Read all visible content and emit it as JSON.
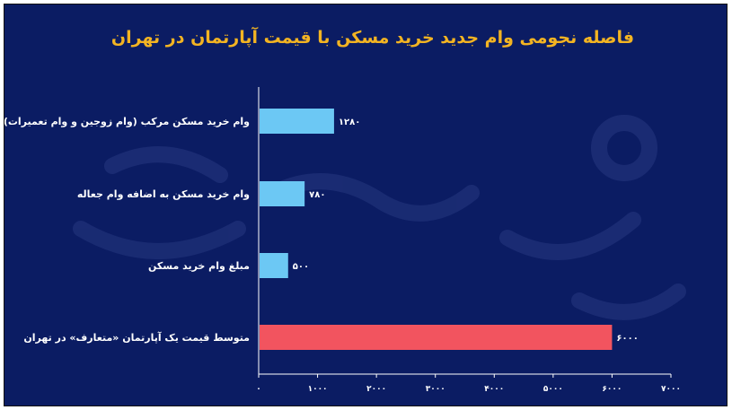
{
  "chart_data": {
    "type": "bar",
    "orientation": "horizontal",
    "title": "فاصله نجومی وام جدید خرید مسکن با قیمت آپارتمان در تهران",
    "categories": [
      "وام خرید مسکن مرکب (وام زوجین و وام تعمیرات)",
      "وام خرید مسکن به اضافه وام جعاله",
      "مبلغ وام خرید مسکن",
      "متوسط قیمت یک آپارتمان «متعارف» در تهران"
    ],
    "values": [
      1280,
      780,
      500,
      6000
    ],
    "value_labels": [
      "۱۲۸۰",
      "۷۸۰",
      "۵۰۰",
      "۶۰۰۰"
    ],
    "bar_colors": [
      "#6cc8f4",
      "#6cc8f4",
      "#6cc8f4",
      "#f2545f"
    ],
    "xlim": [
      0,
      7000
    ],
    "x_ticks": [
      0,
      1000,
      2000,
      3000,
      4000,
      5000,
      6000,
      7000
    ],
    "x_tick_labels": [
      "۰",
      "۱۰۰۰",
      "۲۰۰۰",
      "۳۰۰۰",
      "۴۰۰۰",
      "۵۰۰۰",
      "۶۰۰۰",
      "۷۰۰۰"
    ],
    "xlabel": "",
    "ylabel": "",
    "grid": false,
    "legend": "none"
  },
  "colors": {
    "background": "#0b1c63",
    "title": "#f3b422",
    "text": "#ffffff",
    "axis": "#ffffff"
  }
}
